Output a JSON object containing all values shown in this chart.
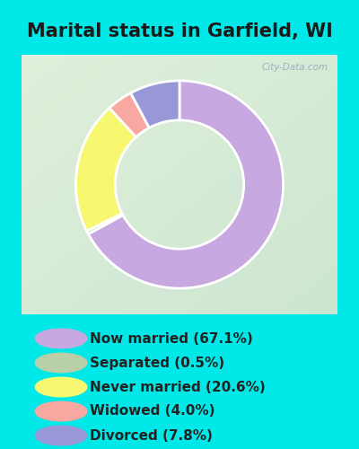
{
  "title": "Marital status in Garfield, WI",
  "title_fontsize": 15,
  "title_fontweight": "bold",
  "categories": [
    "Now married",
    "Separated",
    "Never married",
    "Widowed",
    "Divorced"
  ],
  "values": [
    67.1,
    0.5,
    20.6,
    4.0,
    7.8
  ],
  "colors": [
    "#c8a8e0",
    "#b8cfa8",
    "#f8f870",
    "#f8a8a0",
    "#9898d8"
  ],
  "legend_labels": [
    "Now married (67.1%)",
    "Separated (0.5%)",
    "Never married (20.6%)",
    "Widowed (4.0%)",
    "Divorced (7.8%)"
  ],
  "bg_cyan": "#00e8e8",
  "bg_chart_tl": "#d8edd8",
  "bg_chart_br": "#c8e0d0",
  "watermark": "City-Data.com",
  "donut_width": 0.38,
  "figsize": [
    4.0,
    5.0
  ],
  "dpi": 100,
  "legend_fontsize": 11,
  "legend_text_color": "#222222"
}
